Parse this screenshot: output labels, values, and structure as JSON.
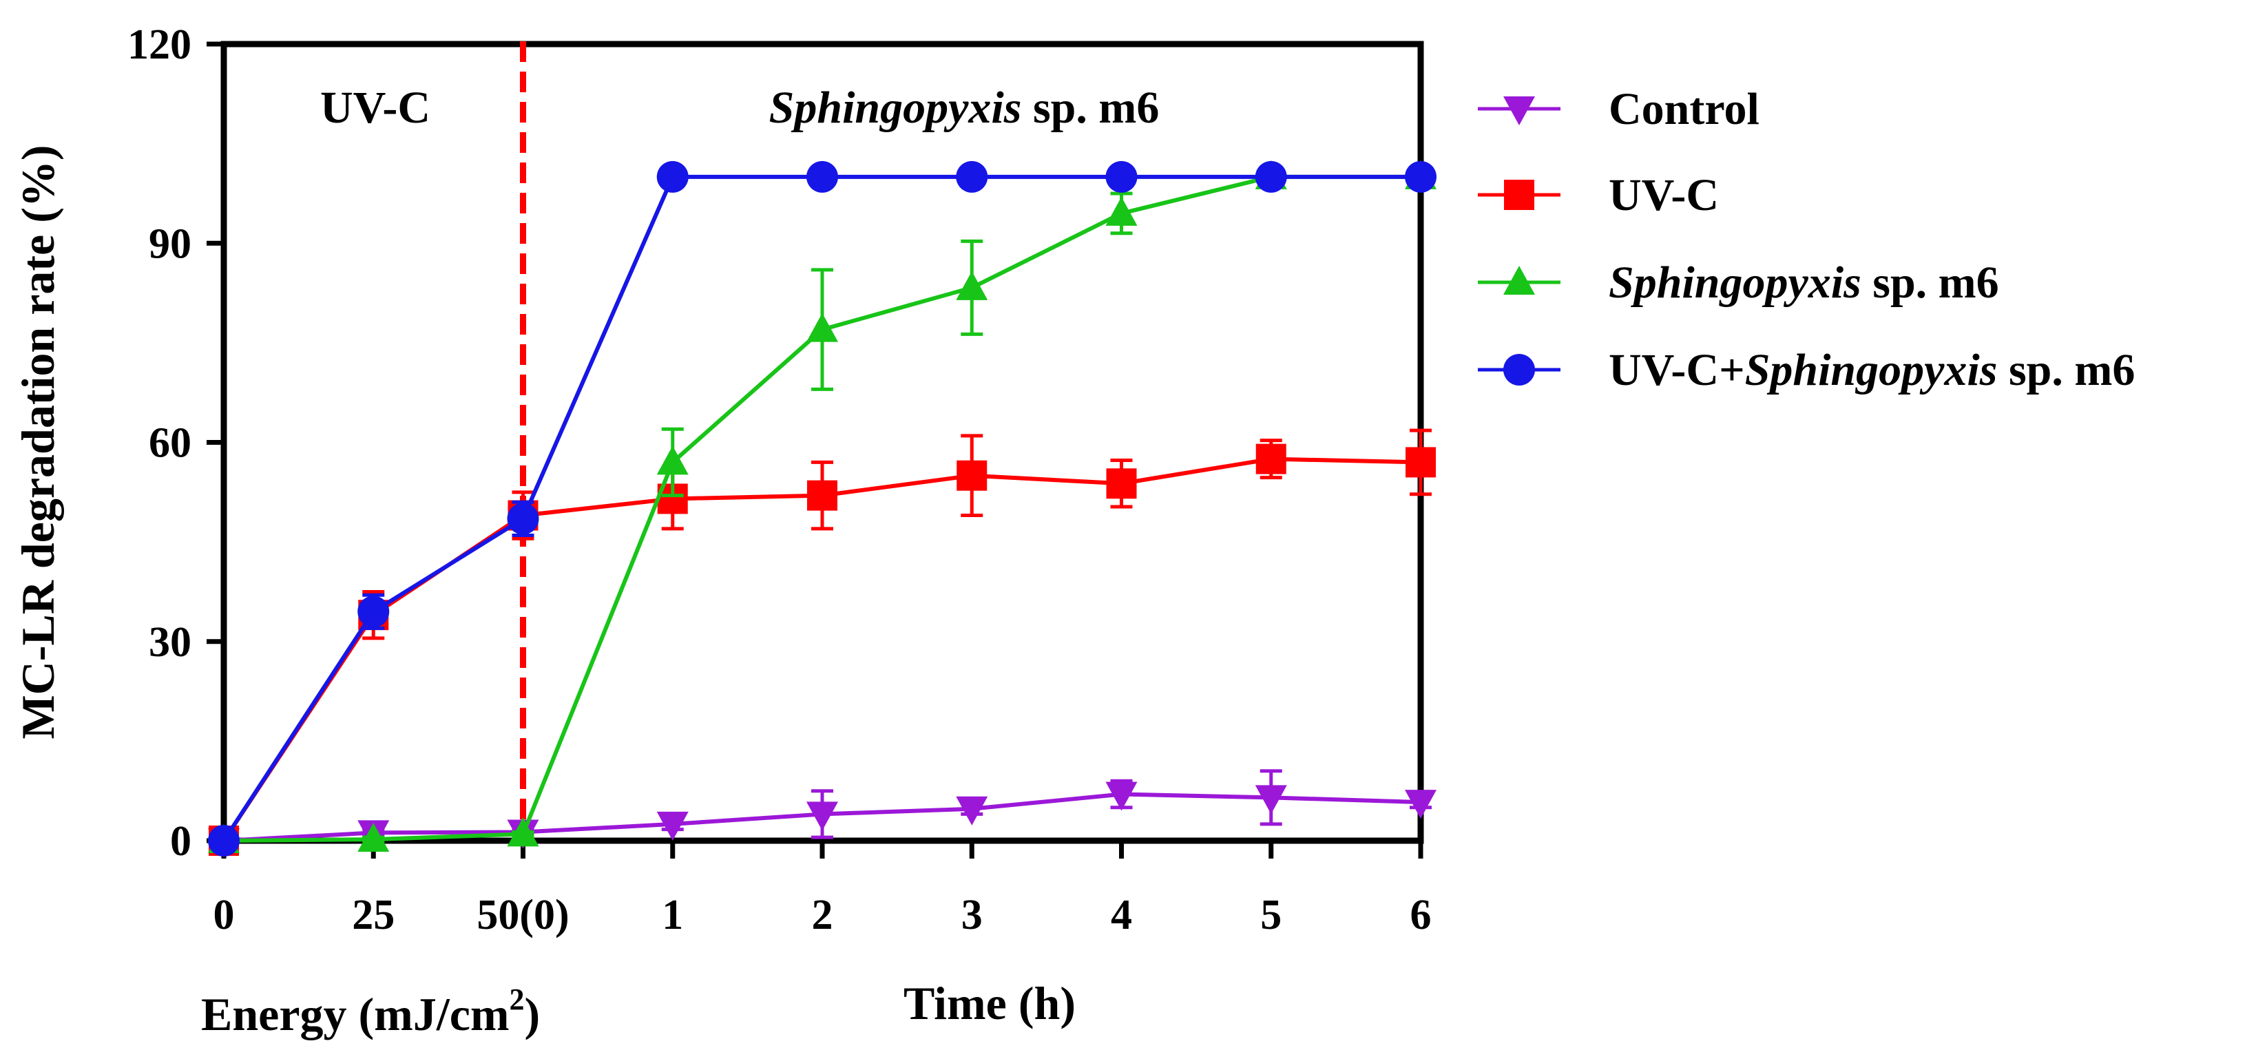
{
  "chart_data": {
    "type": "line",
    "ylabel": "MC-LR degradation rate (%)",
    "ylim": [
      0,
      120
    ],
    "yticks": [
      "0",
      "30",
      "60",
      "90",
      "120"
    ],
    "ytick_values": [
      0,
      30,
      60,
      90,
      120
    ],
    "categories": [
      "0",
      "25",
      "50(0)",
      "1",
      "2",
      "3",
      "4",
      "5",
      "6"
    ],
    "xlabel_left": {
      "main": "Energy (mJ/cm",
      "sup": "2",
      "close": ")"
    },
    "xlabel_right": "Time (h)",
    "regions": {
      "left": "UV-C",
      "right_italic": "Sphingopyxis",
      "right_plain": " sp. m6"
    },
    "divider_index": 2,
    "colors": {
      "control": "#9b18d8",
      "uvc": "#ff0000",
      "sph": "#18c418",
      "combo": "#1616e6",
      "divider": "#ff0000"
    },
    "series": [
      {
        "key": "control",
        "name": "Control",
        "marker": "triangle-down",
        "values": [
          0,
          1.2,
          1.3,
          2.5,
          4.0,
          4.8,
          7.0,
          6.5,
          5.8
        ],
        "errors": [
          0,
          0.5,
          0.5,
          0.8,
          3.5,
          0.8,
          2.0,
          4.0,
          0.8
        ]
      },
      {
        "key": "uvc",
        "name": "UV-C",
        "marker": "square",
        "values": [
          0,
          34.0,
          49.0,
          51.5,
          52.0,
          55.0,
          53.8,
          57.5,
          57.0
        ],
        "errors": [
          0,
          3.5,
          3.5,
          4.5,
          5.0,
          6.0,
          3.5,
          2.8,
          4.8
        ]
      },
      {
        "key": "sph",
        "name_italic": "Sphingopyxis",
        "name_plain": " sp. m6",
        "marker": "triangle-up",
        "values": [
          0,
          0.2,
          1.0,
          57.0,
          77.0,
          83.3,
          94.5,
          100,
          100
        ],
        "errors": [
          0,
          0.3,
          0.3,
          5.0,
          9.0,
          7.0,
          3.0,
          0.5,
          0.5
        ]
      },
      {
        "key": "combo",
        "name_pre": "UV-C+",
        "name_italic": "Sphingopyxis",
        "name_plain": " sp. m6",
        "marker": "circle",
        "values": [
          0,
          34.5,
          48.5,
          100,
          100,
          100,
          100,
          100,
          100
        ],
        "errors": [
          0,
          2.5,
          2.5,
          0,
          0,
          0,
          0,
          0,
          0
        ]
      }
    ]
  }
}
